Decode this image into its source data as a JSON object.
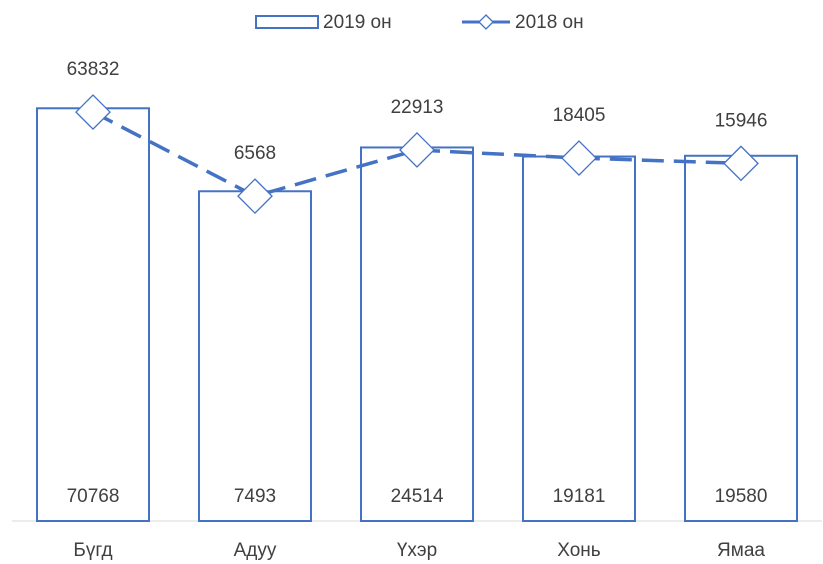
{
  "chart_data": {
    "type": "bar-line",
    "categories": [
      "Бүгд",
      "Адуу",
      "Үхэр",
      "Хонь",
      "Ямаа"
    ],
    "series": [
      {
        "name": "2019 он",
        "type": "bar",
        "color": "#4472c4",
        "values": [
          70768,
          7493,
          24514,
          19181,
          19580
        ]
      },
      {
        "name": "2018 он",
        "type": "line",
        "color": "#4472c4",
        "values": [
          63832,
          6568,
          22913,
          18405,
          15946
        ]
      }
    ],
    "ylim": [
      1,
      100000
    ],
    "log_scale": true,
    "grid": false,
    "legend": "top"
  }
}
